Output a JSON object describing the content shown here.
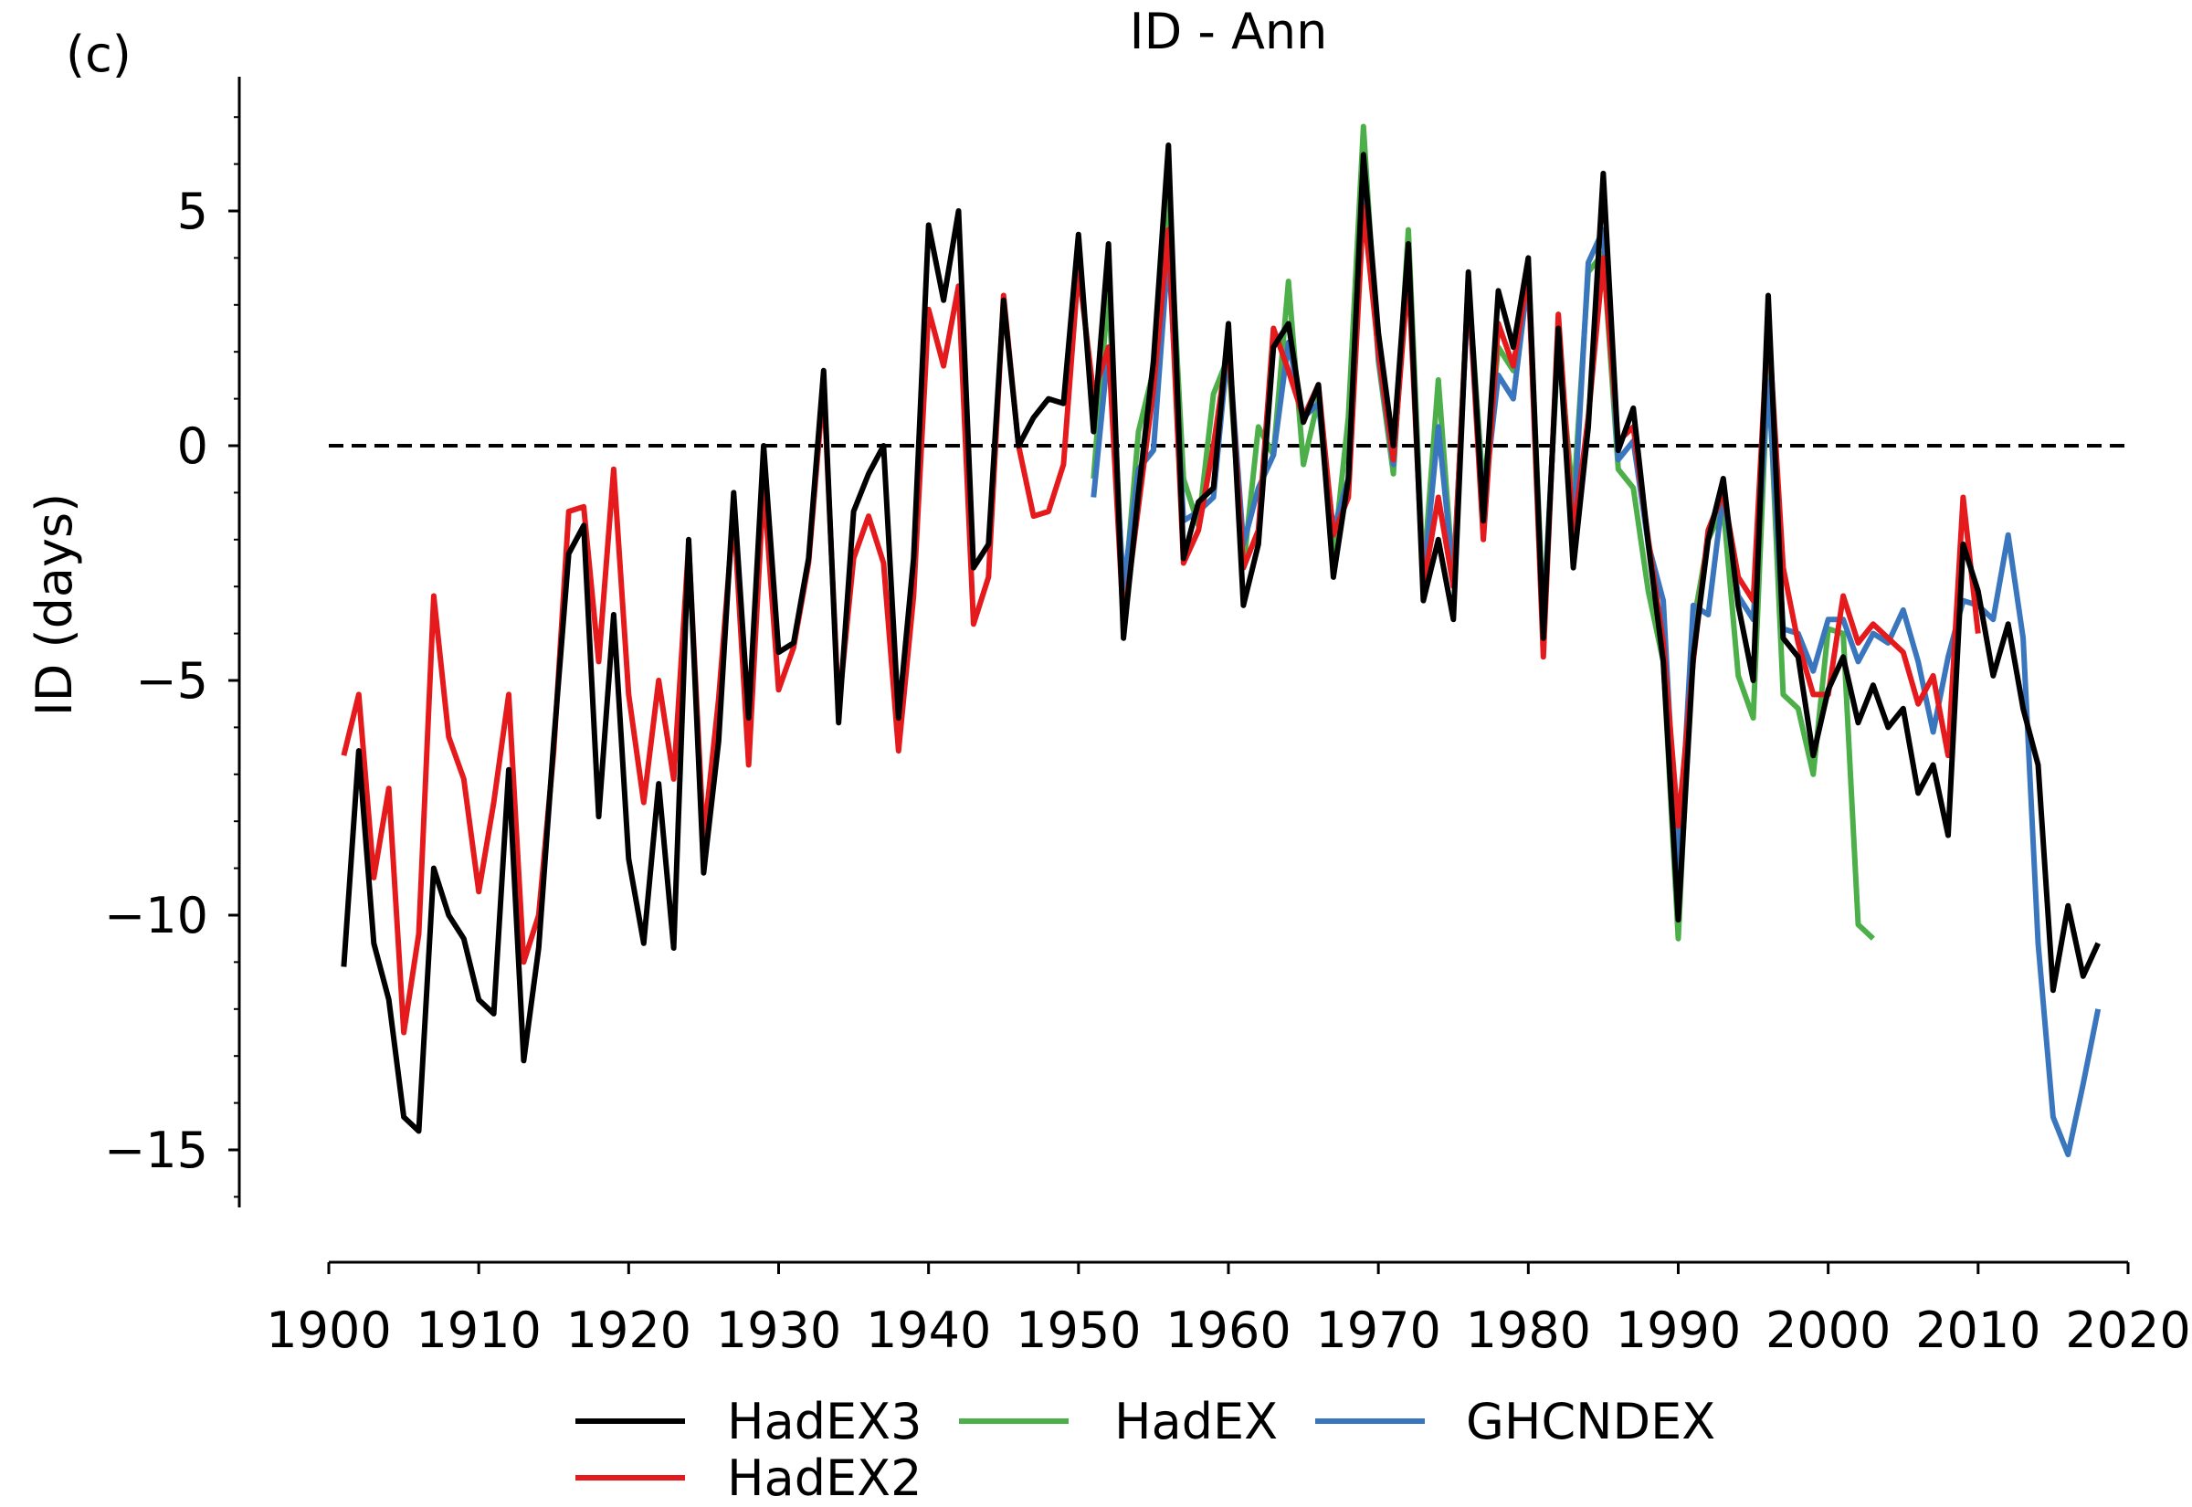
{
  "panel_label": "(c)",
  "chart_data": {
    "type": "line",
    "title": "ID - Ann",
    "xlabel": "",
    "ylabel": "ID (days)",
    "xlim": [
      1900,
      2020
    ],
    "ylim": [
      -16,
      8
    ],
    "x_ticks": [
      1900,
      1910,
      1920,
      1930,
      1940,
      1950,
      1960,
      1970,
      1980,
      1990,
      2000,
      2010,
      2020
    ],
    "x_tick_labels": [
      "1900",
      "1910",
      "1920",
      "1930",
      "1940",
      "1950",
      "1960",
      "1970",
      "1980",
      "1990",
      "2000",
      "2010",
      "2020"
    ],
    "y_ticks": [
      5,
      0,
      -5,
      -10,
      -15
    ],
    "y_tick_labels": [
      "5",
      "0",
      "−5",
      "−10",
      "−15"
    ],
    "reference_line": {
      "y": 0,
      "style": "dashed",
      "color": "#000000"
    },
    "grid": false,
    "legend_position": "bottom",
    "series": [
      {
        "name": "HadEX",
        "color": "#4daf4a",
        "x": [
          1951,
          1952,
          1953,
          1954,
          1955,
          1956,
          1957,
          1958,
          1959,
          1960,
          1961,
          1962,
          1963,
          1964,
          1965,
          1966,
          1967,
          1968,
          1969,
          1970,
          1971,
          1972,
          1973,
          1974,
          1975,
          1976,
          1977,
          1978,
          1979,
          1980,
          1981,
          1982,
          1983,
          1984,
          1985,
          1986,
          1987,
          1988,
          1989,
          1990,
          1991,
          1992,
          1993,
          1994,
          1995,
          1996,
          1997,
          1998,
          1999,
          2000,
          2001,
          2002,
          2003
        ],
        "y": [
          -0.7,
          3.4,
          -3.4,
          0.3,
          1.6,
          5.4,
          -0.7,
          -1.7,
          1.1,
          1.9,
          -2.6,
          0.4,
          -0.2,
          3.5,
          -0.4,
          1.0,
          -2.4,
          0.6,
          6.8,
          1.8,
          -0.6,
          4.6,
          -2.8,
          1.4,
          -2.9,
          3.5,
          -1.0,
          2.1,
          1.6,
          3.8,
          -3.7,
          2.2,
          -1.2,
          3.7,
          4.1,
          -0.5,
          -0.9,
          -3.1,
          -4.6,
          -10.5,
          -3.8,
          -2.0,
          -1.3,
          -4.9,
          -5.8,
          1.8,
          -5.3,
          -5.6,
          -7.0,
          -3.9,
          -4.0,
          -10.2,
          -10.5
        ]
      },
      {
        "name": "GHCNDEX",
        "color": "#3a76bd",
        "x": [
          1951,
          1952,
          1953,
          1954,
          1955,
          1956,
          1957,
          1958,
          1959,
          1960,
          1961,
          1962,
          1963,
          1964,
          1965,
          1966,
          1967,
          1968,
          1969,
          1970,
          1971,
          1972,
          1973,
          1974,
          1975,
          1976,
          1977,
          1978,
          1979,
          1980,
          1981,
          1982,
          1983,
          1984,
          1985,
          1986,
          1987,
          1988,
          1989,
          1990,
          1991,
          1992,
          1993,
          1994,
          1995,
          1996,
          1997,
          1998,
          1999,
          2000,
          2001,
          2002,
          2003,
          2004,
          2005,
          2006,
          2007,
          2008,
          2009,
          2010,
          2011,
          2012,
          2013,
          2014,
          2015,
          2016,
          2017,
          2018
        ],
        "y": [
          -1.1,
          2.1,
          -3.0,
          -0.5,
          -0.1,
          4.2,
          -1.6,
          -1.4,
          -1.1,
          2.2,
          -2.1,
          -0.9,
          -0.2,
          2.2,
          0.6,
          0.9,
          -1.8,
          -0.7,
          6.0,
          1.9,
          -0.4,
          4.0,
          -2.9,
          0.4,
          -2.8,
          3.3,
          -1.3,
          1.5,
          1.0,
          3.6,
          -3.9,
          2.4,
          -1.8,
          3.9,
          4.6,
          -0.3,
          0.1,
          -2.1,
          -3.3,
          -9.2,
          -3.4,
          -3.6,
          -1.0,
          -3.2,
          -3.7,
          1.4,
          -3.9,
          -4.0,
          -4.8,
          -3.7,
          -3.7,
          -4.6,
          -4.0,
          -4.2,
          -3.5,
          -4.6,
          -6.1,
          -4.5,
          -3.3,
          -3.4,
          -3.7,
          -1.9,
          -4.1,
          -10.6,
          -14.3,
          -15.1,
          -13.6,
          -12.0
        ]
      },
      {
        "name": "HadEX2",
        "color": "#e41a1c",
        "x": [
          1901,
          1902,
          1903,
          1904,
          1905,
          1906,
          1907,
          1908,
          1909,
          1910,
          1911,
          1912,
          1913,
          1914,
          1915,
          1916,
          1917,
          1918,
          1919,
          1920,
          1921,
          1922,
          1923,
          1924,
          1925,
          1926,
          1927,
          1928,
          1929,
          1930,
          1931,
          1932,
          1933,
          1934,
          1935,
          1936,
          1937,
          1938,
          1939,
          1940,
          1941,
          1942,
          1943,
          1944,
          1945,
          1946,
          1947,
          1948,
          1949,
          1950,
          1951,
          1952,
          1953,
          1954,
          1955,
          1956,
          1957,
          1958,
          1959,
          1960,
          1961,
          1962,
          1963,
          1964,
          1965,
          1966,
          1967,
          1968,
          1969,
          1970,
          1971,
          1972,
          1973,
          1974,
          1975,
          1976,
          1977,
          1978,
          1979,
          1980,
          1981,
          1982,
          1983,
          1984,
          1985,
          1986,
          1987,
          1988,
          1989,
          1990,
          1991,
          1992,
          1993,
          1994,
          1995,
          1996,
          1997,
          1998,
          1999,
          2000,
          2001,
          2002,
          2003,
          2004,
          2005,
          2006,
          2007,
          2008,
          2009,
          2010
        ],
        "y": [
          -6.6,
          -5.3,
          -9.2,
          -7.3,
          -12.5,
          -10.4,
          -3.2,
          -6.2,
          -7.1,
          -9.5,
          -7.6,
          -5.3,
          -11.0,
          -10.0,
          -6.5,
          -1.4,
          -1.3,
          -4.6,
          -0.5,
          -5.3,
          -7.6,
          -5.0,
          -7.1,
          -2.1,
          -8.4,
          -5.4,
          -1.4,
          -6.8,
          -0.8,
          -5.2,
          -4.3,
          -2.5,
          1.3,
          -5.6,
          -2.4,
          -1.5,
          -2.5,
          -6.5,
          -3.2,
          2.9,
          1.7,
          3.4,
          -3.8,
          -2.8,
          3.2,
          0.0,
          -1.5,
          -1.4,
          -0.4,
          3.8,
          1.1,
          2.1,
          -3.8,
          -1.3,
          1.2,
          4.6,
          -2.5,
          -1.8,
          0.0,
          2.2,
          -2.6,
          -1.8,
          2.5,
          1.6,
          0.6,
          1.3,
          -1.9,
          -1.1,
          5.1,
          2.0,
          -0.3,
          3.7,
          -3.0,
          -1.1,
          -3.0,
          3.5,
          -2.0,
          2.6,
          1.7,
          3.7,
          -4.5,
          2.8,
          -1.9,
          0.6,
          4.0,
          0.1,
          0.4,
          -2.0,
          -4.2,
          -8.1,
          -4.6,
          -1.8,
          -1.0,
          -2.8,
          -3.3,
          2.7,
          -2.6,
          -4.2,
          -5.3,
          -5.3,
          -3.2,
          -4.2,
          -3.8,
          -4.1,
          -4.4,
          -5.5,
          -4.9,
          -6.6,
          -1.1,
          -4.0
        ]
      },
      {
        "name": "HadEX3",
        "color": "#000000",
        "x": [
          1901,
          1902,
          1903,
          1904,
          1905,
          1906,
          1907,
          1908,
          1909,
          1910,
          1911,
          1912,
          1913,
          1914,
          1915,
          1916,
          1917,
          1918,
          1919,
          1920,
          1921,
          1922,
          1923,
          1924,
          1925,
          1926,
          1927,
          1928,
          1929,
          1930,
          1931,
          1932,
          1933,
          1934,
          1935,
          1936,
          1937,
          1938,
          1939,
          1940,
          1941,
          1942,
          1943,
          1944,
          1945,
          1946,
          1947,
          1948,
          1949,
          1950,
          1951,
          1952,
          1953,
          1954,
          1955,
          1956,
          1957,
          1958,
          1959,
          1960,
          1961,
          1962,
          1963,
          1964,
          1965,
          1966,
          1967,
          1968,
          1969,
          1970,
          1971,
          1972,
          1973,
          1974,
          1975,
          1976,
          1977,
          1978,
          1979,
          1980,
          1981,
          1982,
          1983,
          1984,
          1985,
          1986,
          1987,
          1988,
          1989,
          1990,
          1991,
          1992,
          1993,
          1994,
          1995,
          1996,
          1997,
          1998,
          1999,
          2000,
          2001,
          2002,
          2003,
          2004,
          2005,
          2006,
          2007,
          2008,
          2009,
          2010,
          2011,
          2012,
          2013,
          2014,
          2015,
          2016,
          2017,
          2018
        ],
        "y": [
          -11.1,
          -6.5,
          -10.6,
          -11.8,
          -14.3,
          -14.6,
          -9.0,
          -10.0,
          -10.5,
          -11.8,
          -12.1,
          -6.9,
          -13.1,
          -10.7,
          -6.3,
          -2.3,
          -1.7,
          -7.9,
          -3.6,
          -8.8,
          -10.6,
          -7.2,
          -10.7,
          -2.0,
          -9.1,
          -6.3,
          -1.0,
          -5.8,
          0.0,
          -4.4,
          -4.2,
          -2.4,
          1.6,
          -5.9,
          -1.4,
          -0.6,
          0.0,
          -5.8,
          -2.4,
          4.7,
          3.1,
          5.0,
          -2.6,
          -2.1,
          3.1,
          0.0,
          0.6,
          1.0,
          0.9,
          4.5,
          0.3,
          4.3,
          -4.1,
          -1.0,
          1.8,
          6.4,
          -2.4,
          -1.2,
          -0.9,
          2.6,
          -3.4,
          -2.1,
          2.1,
          2.6,
          0.5,
          1.3,
          -2.8,
          -0.7,
          6.2,
          2.4,
          0.0,
          4.3,
          -3.3,
          -2.0,
          -3.7,
          3.7,
          -1.6,
          3.3,
          2.1,
          4.0,
          -4.1,
          2.5,
          -2.6,
          0.4,
          5.8,
          -0.1,
          0.8,
          -2.1,
          -4.6,
          -10.1,
          -4.5,
          -2.0,
          -0.7,
          -3.4,
          -5.0,
          3.2,
          -4.1,
          -4.5,
          -6.6,
          -5.2,
          -4.5,
          -5.9,
          -5.1,
          -6.0,
          -5.6,
          -7.4,
          -6.8,
          -8.3,
          -2.1,
          -3.1,
          -4.9,
          -3.8,
          -5.6,
          -6.8,
          -11.6,
          -9.8,
          -11.3,
          -10.6
        ]
      }
    ],
    "legend": [
      {
        "name": "HadEX3",
        "color": "#000000"
      },
      {
        "name": "HadEX",
        "color": "#4daf4a"
      },
      {
        "name": "GHCNDEX",
        "color": "#3a76bd"
      },
      {
        "name": "HadEX2",
        "color": "#e41a1c"
      }
    ]
  }
}
